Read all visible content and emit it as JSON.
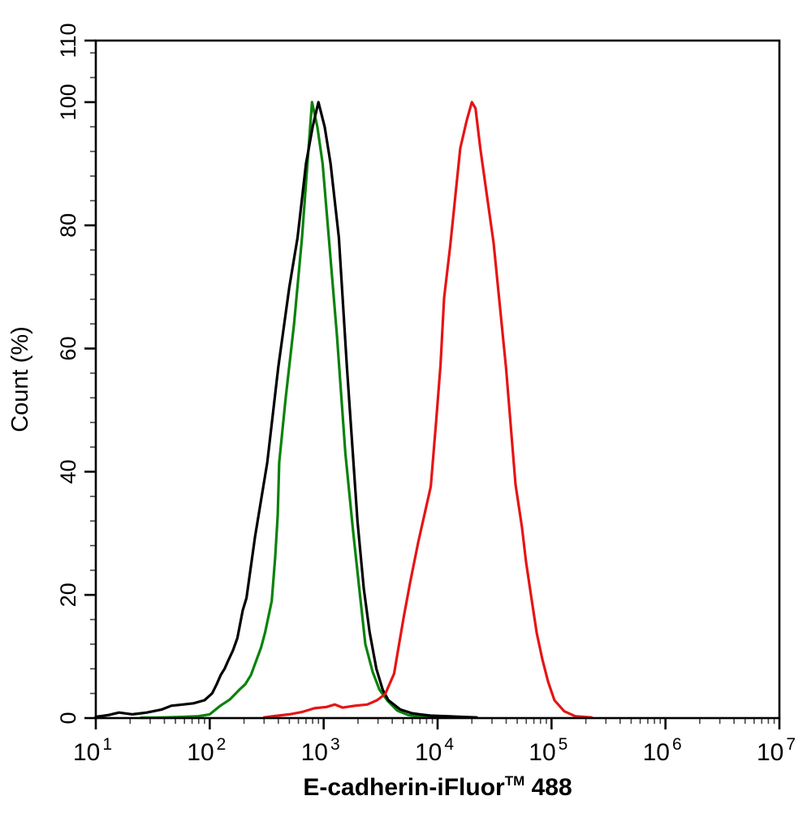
{
  "figure": {
    "background_color": "#ffffff",
    "frame_color": "#000000"
  },
  "chart_data": {
    "type": "line",
    "subtype": "flow-cytometry-histogram",
    "title": "",
    "xlabel_parts": {
      "base": "E-cadherin-iFluor",
      "sup": "TM",
      "suffix": " 488"
    },
    "ylabel": "Count (%)",
    "x_axis": {
      "scale": "log10",
      "min": 10,
      "max": 10000000,
      "tick_base": "10",
      "tick_exponents": [
        1,
        2,
        3,
        4,
        5,
        6,
        7
      ],
      "minor_tick_multiples": [
        2,
        3,
        4,
        5,
        6,
        7,
        8,
        9
      ]
    },
    "y_axis": {
      "scale": "linear",
      "min": 0,
      "max": 110,
      "major_ticks": [
        0,
        20,
        40,
        60,
        80,
        100,
        110
      ],
      "minor_tick_step": 4
    },
    "grid": false,
    "legend": false,
    "series": [
      {
        "name": "green-curve",
        "color": "#0a820a",
        "points": [
          [
            25,
            0.05
          ],
          [
            40,
            0.1
          ],
          [
            60,
            0.2
          ],
          [
            80,
            0.3
          ],
          [
            100,
            0.6
          ],
          [
            124,
            2.0
          ],
          [
            150,
            3.0
          ],
          [
            182,
            4.6
          ],
          [
            205,
            5.5
          ],
          [
            230,
            7.0
          ],
          [
            252,
            9.0
          ],
          [
            283,
            11.5
          ],
          [
            307,
            14.0
          ],
          [
            350,
            19.0
          ],
          [
            375,
            26.0
          ],
          [
            395,
            33.0
          ],
          [
            407,
            41.5
          ],
          [
            464,
            52.0
          ],
          [
            550,
            64.0
          ],
          [
            646,
            78.0
          ],
          [
            713,
            89.0
          ],
          [
            790,
            100.0
          ],
          [
            880,
            96.0
          ],
          [
            980,
            90.0
          ],
          [
            1110,
            78.0
          ],
          [
            1310,
            62.0
          ],
          [
            1550,
            43.0
          ],
          [
            1820,
            30.0
          ],
          [
            2110,
            19.0
          ],
          [
            2320,
            12.0
          ],
          [
            2690,
            7.5
          ],
          [
            3090,
            4.6
          ],
          [
            3640,
            2.8
          ],
          [
            4440,
            1.2
          ],
          [
            5500,
            0.5
          ],
          [
            7050,
            0.2
          ],
          [
            9700,
            0.05
          ]
        ]
      },
      {
        "name": "black-curve",
        "color": "#000000",
        "points": [
          [
            10,
            0.2
          ],
          [
            13,
            0.5
          ],
          [
            16,
            0.9
          ],
          [
            21,
            0.6
          ],
          [
            28,
            0.9
          ],
          [
            38,
            1.4
          ],
          [
            46,
            2.0
          ],
          [
            58,
            2.2
          ],
          [
            72,
            2.4
          ],
          [
            90,
            2.9
          ],
          [
            105,
            4.0
          ],
          [
            115,
            5.5
          ],
          [
            125,
            7.0
          ],
          [
            135,
            8.0
          ],
          [
            145,
            9.3
          ],
          [
            160,
            11.0
          ],
          [
            175,
            13.0
          ],
          [
            195,
            17.5
          ],
          [
            210,
            19.5
          ],
          [
            250,
            29.5
          ],
          [
            320,
            41.5
          ],
          [
            400,
            57.0
          ],
          [
            500,
            70.0
          ],
          [
            590,
            78.0
          ],
          [
            700,
            90.0
          ],
          [
            800,
            96.0
          ],
          [
            900,
            100.0
          ],
          [
            1020,
            96.0
          ],
          [
            1150,
            90.0
          ],
          [
            1360,
            78.0
          ],
          [
            1600,
            57.0
          ],
          [
            1980,
            32.0
          ],
          [
            2250,
            21.0
          ],
          [
            2530,
            14.0
          ],
          [
            2900,
            8.0
          ],
          [
            3300,
            4.6
          ],
          [
            3700,
            2.9
          ],
          [
            4700,
            1.4
          ],
          [
            5900,
            0.8
          ],
          [
            7000,
            0.6
          ],
          [
            8700,
            0.4
          ],
          [
            12000,
            0.3
          ],
          [
            16000,
            0.2
          ],
          [
            22000,
            0.1
          ]
        ]
      },
      {
        "name": "red-curve",
        "color": "#e61414",
        "points": [
          [
            300,
            0.1
          ],
          [
            360,
            0.3
          ],
          [
            500,
            0.6
          ],
          [
            650,
            1.0
          ],
          [
            830,
            1.6
          ],
          [
            1060,
            1.8
          ],
          [
            1250,
            2.2
          ],
          [
            1470,
            1.7
          ],
          [
            1880,
            2.0
          ],
          [
            2410,
            2.2
          ],
          [
            2940,
            2.9
          ],
          [
            3470,
            3.9
          ],
          [
            4150,
            7.2
          ],
          [
            4510,
            11.2
          ],
          [
            5050,
            16.5
          ],
          [
            5750,
            22.1
          ],
          [
            6790,
            28.7
          ],
          [
            8710,
            37.6
          ],
          [
            9700,
            48.0
          ],
          [
            10600,
            57.3
          ],
          [
            11400,
            68.2
          ],
          [
            12900,
            76.6
          ],
          [
            15800,
            92.5
          ],
          [
            18000,
            97.0
          ],
          [
            20000,
            100.0
          ],
          [
            21500,
            99.0
          ],
          [
            23700,
            92.5
          ],
          [
            31000,
            77.1
          ],
          [
            39800,
            57.0
          ],
          [
            48300,
            37.9
          ],
          [
            55000,
            31.0
          ],
          [
            59800,
            25.3
          ],
          [
            67100,
            19.1
          ],
          [
            74100,
            13.8
          ],
          [
            83200,
            9.5
          ],
          [
            93300,
            5.9
          ],
          [
            106000,
            2.9
          ],
          [
            129000,
            1.1
          ],
          [
            161000,
            0.3
          ],
          [
            224000,
            0.1
          ]
        ]
      }
    ]
  }
}
